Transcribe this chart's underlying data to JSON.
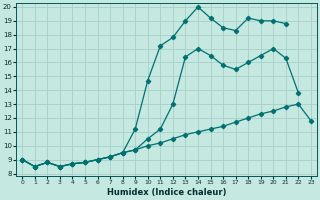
{
  "xlabel": "Humidex (Indice chaleur)",
  "bg_color": "#c5e8e0",
  "grid_color": "#a8cfc8",
  "line_color": "#007070",
  "xlim": [
    -0.5,
    23.5
  ],
  "ylim": [
    7.8,
    20.3
  ],
  "xticks": [
    0,
    1,
    2,
    3,
    4,
    5,
    6,
    7,
    8,
    9,
    10,
    11,
    12,
    13,
    14,
    15,
    16,
    17,
    18,
    19,
    20,
    21,
    22,
    23
  ],
  "yticks": [
    8,
    9,
    10,
    11,
    12,
    13,
    14,
    15,
    16,
    17,
    18,
    19,
    20
  ],
  "line_bot_x": [
    0,
    1,
    2,
    3,
    4,
    5,
    6,
    7,
    8,
    9,
    10,
    11,
    12,
    13,
    14,
    15,
    16,
    17,
    18,
    19,
    20,
    21,
    22,
    23
  ],
  "line_bot_y": [
    9.0,
    8.5,
    8.8,
    8.5,
    8.7,
    8.8,
    9.0,
    9.2,
    9.5,
    9.7,
    10.0,
    10.2,
    10.5,
    10.8,
    11.0,
    11.2,
    11.4,
    11.7,
    12.0,
    12.3,
    12.5,
    12.8,
    13.0,
    11.8
  ],
  "line_mid_x": [
    0,
    1,
    2,
    3,
    4,
    5,
    6,
    7,
    8,
    9,
    10,
    11,
    12,
    13,
    14,
    15,
    16,
    17,
    18,
    19,
    20,
    21,
    22
  ],
  "line_mid_y": [
    9.0,
    8.5,
    8.8,
    8.5,
    8.7,
    8.8,
    9.0,
    9.2,
    9.5,
    9.7,
    10.5,
    11.2,
    13.0,
    16.4,
    17.0,
    16.5,
    15.8,
    15.5,
    16.0,
    16.5,
    17.0,
    16.3,
    13.8
  ],
  "line_top_x": [
    0,
    1,
    2,
    3,
    4,
    5,
    6,
    7,
    8,
    9,
    10,
    11,
    12,
    13,
    14,
    15,
    16,
    17,
    18,
    19,
    20,
    21
  ],
  "line_top_y": [
    9.0,
    8.5,
    8.8,
    8.5,
    8.7,
    8.8,
    9.0,
    9.2,
    9.5,
    11.2,
    14.7,
    17.2,
    17.8,
    19.0,
    20.0,
    19.2,
    18.5,
    18.3,
    19.2,
    19.0,
    19.0,
    18.8
  ]
}
